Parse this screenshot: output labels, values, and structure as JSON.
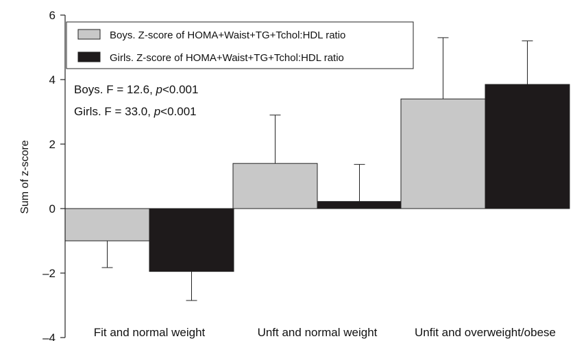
{
  "chart_data": {
    "type": "bar",
    "categories": [
      "Fit and normal weight",
      "Unft and normal weight",
      "Unfit and overweight/obese"
    ],
    "series": [
      {
        "name": "Boys. Z-score of HOMA+Waist+TG+Tchol:HDL ratio",
        "values": [
          -1.0,
          1.4,
          3.4
        ],
        "errors": [
          0.83,
          1.5,
          1.9
        ],
        "color": "#c8c8c8"
      },
      {
        "name": "Girls. Z-score of HOMA+Waist+TG+Tchol:HDL ratio",
        "values": [
          -1.95,
          0.22,
          3.85
        ],
        "errors": [
          0.9,
          1.15,
          1.35
        ],
        "color": "#1e1a1b"
      }
    ],
    "title": "",
    "xlabel": "",
    "ylabel": "Sum of z-score",
    "ylim": [
      -4,
      6
    ],
    "yticks": [
      6,
      4,
      2,
      0,
      -2,
      -4
    ],
    "ytick_labels": [
      "6",
      "4",
      "2",
      "0",
      "–2",
      "–4"
    ],
    "grid": false,
    "legend": "top-left",
    "annotations": [
      {
        "prefix": "Boys. F = 12.6, ",
        "italic": "p",
        "suffix": "<0.001"
      },
      {
        "prefix": "Girls. F = 33.0, ",
        "italic": "p",
        "suffix": "<0.001"
      }
    ]
  }
}
